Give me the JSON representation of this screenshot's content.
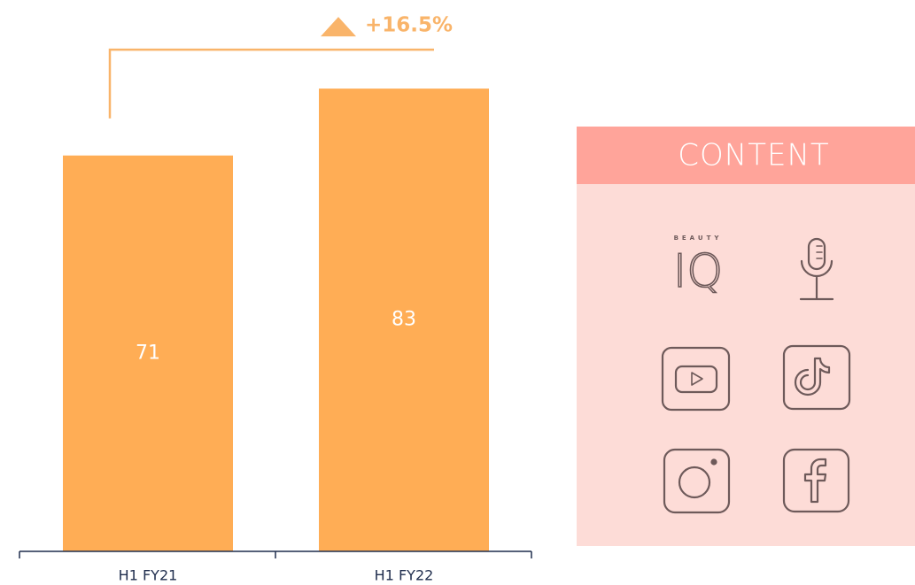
{
  "chart_data": {
    "type": "bar",
    "categories": [
      "H1 FY21",
      "H1 FY22"
    ],
    "values": [
      71,
      83
    ],
    "color": "#ffad55",
    "annotation": "+16.5%",
    "annotation_color": "#f9b46a"
  },
  "panel": {
    "title": "CONTENT",
    "logo_top": "BEAUTY",
    "logo": "IQ"
  }
}
